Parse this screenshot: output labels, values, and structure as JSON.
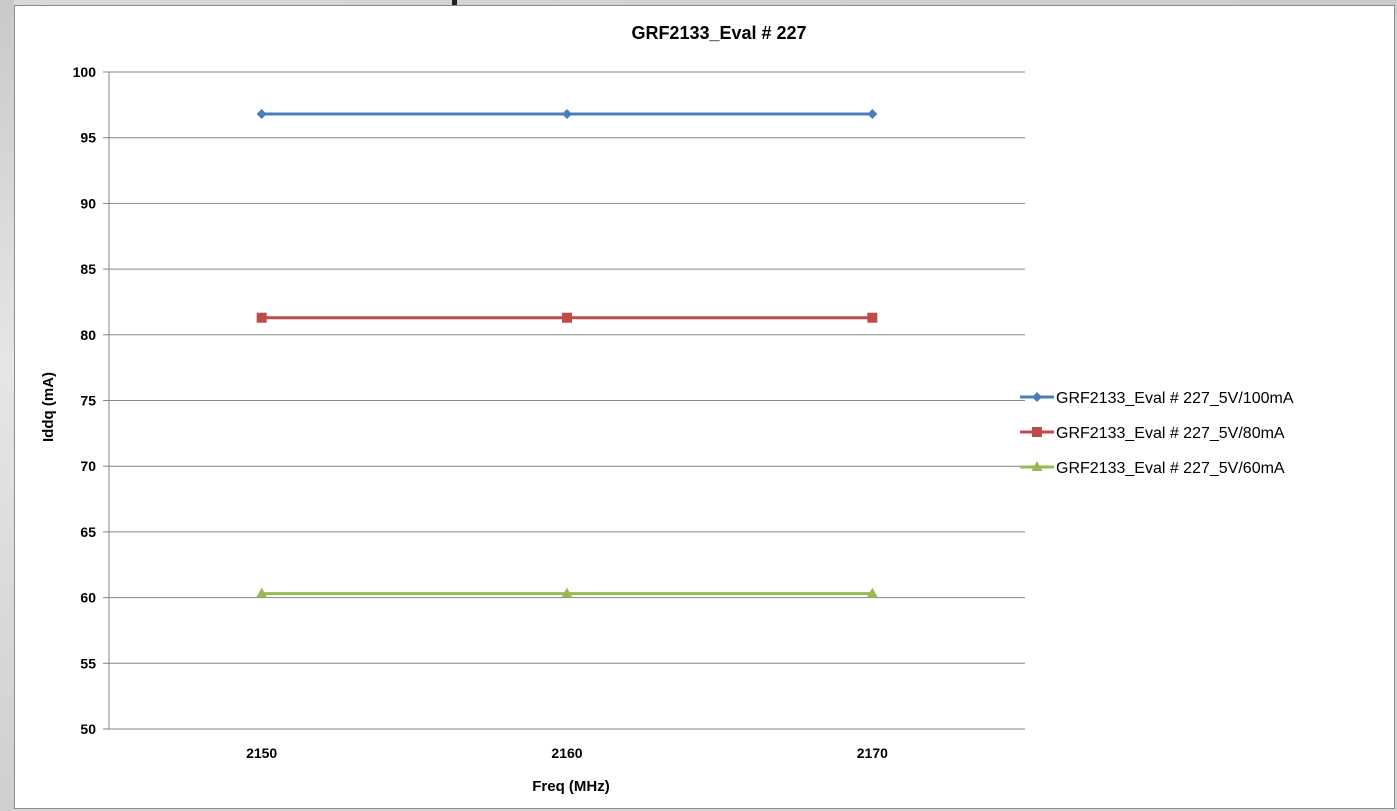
{
  "chart_data": {
    "type": "line",
    "title": "GRF2133_Eval # 227",
    "xlabel": "Freq (MHz)",
    "ylabel": "Iddq (mA)",
    "x": [
      2150,
      2160,
      2170
    ],
    "x_tick_labels": [
      "2150",
      "2160",
      "2170"
    ],
    "ylim": [
      50,
      100
    ],
    "y_ticks": [
      50,
      55,
      60,
      65,
      70,
      75,
      80,
      85,
      90,
      95,
      100
    ],
    "grid": true,
    "legend_position": "right",
    "series": [
      {
        "name": "GRF2133_Eval # 227_5V/100mA",
        "values": [
          96.8,
          96.8,
          96.8
        ],
        "color": "#4a7ebb",
        "marker": "diamond"
      },
      {
        "name": "GRF2133_Eval # 227_5V/80mA",
        "values": [
          81.3,
          81.3,
          81.3
        ],
        "color": "#be4b48",
        "marker": "square"
      },
      {
        "name": "GRF2133_Eval # 227_5V/60mA",
        "values": [
          60.3,
          60.3,
          60.3
        ],
        "color": "#98b954",
        "marker": "triangle"
      }
    ]
  }
}
